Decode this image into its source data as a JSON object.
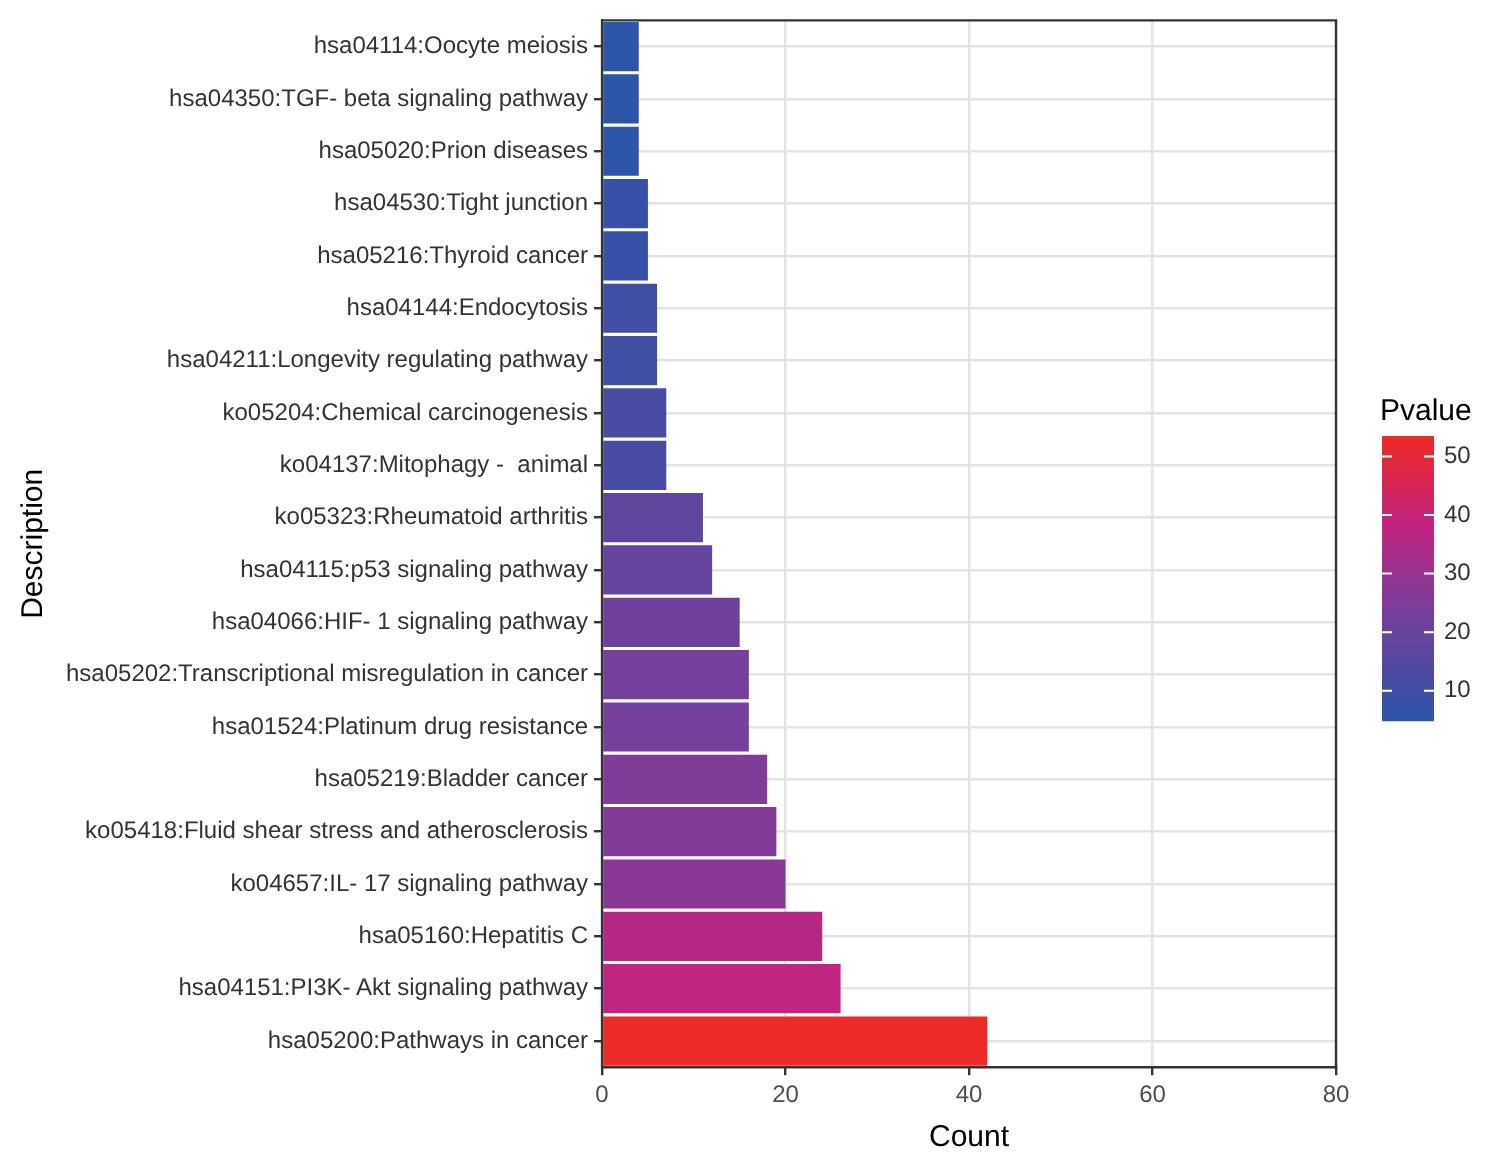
{
  "chart_data": {
    "type": "bar",
    "orientation": "horizontal",
    "xlabel": "Count",
    "ylabel": "Description",
    "clabel": "Pvalue",
    "categories": [
      "hsa04114:Oocyte meiosis",
      "hsa04350:TGF- beta signaling pathway",
      "hsa05020:Prion diseases",
      "hsa04530:Tight junction",
      "hsa05216:Thyroid cancer",
      "hsa04144:Endocytosis",
      "hsa04211:Longevity regulating pathway",
      "ko05204:Chemical carcinogenesis",
      "ko04137:Mitophagy -  animal",
      "ko05323:Rheumatoid arthritis",
      "hsa04115:p53 signaling pathway",
      "hsa04066:HIF- 1 signaling pathway",
      "hsa05202:Transcriptional misregulation in cancer",
      "hsa01524:Platinum drug resistance",
      "hsa05219:Bladder cancer",
      "ko05418:Fluid shear stress and atherosclerosis",
      "ko04657:IL- 17 signaling pathway",
      "hsa05160:Hepatitis C",
      "hsa04151:PI3K- Akt signaling pathway",
      "hsa05200:Pathways in cancer"
    ],
    "values": [
      4,
      4,
      4,
      5,
      5,
      6,
      6,
      7,
      7,
      11,
      12,
      15,
      16,
      16,
      18,
      19,
      20,
      24,
      26,
      42
    ],
    "cvalues": [
      5,
      5,
      5,
      8,
      8,
      10,
      10,
      12,
      12,
      18,
      19,
      22,
      23,
      23,
      25,
      26,
      27,
      36,
      38,
      53
    ],
    "clim": [
      5,
      53.5
    ],
    "cticks": [
      10,
      20,
      30,
      40,
      50
    ],
    "xlim": [
      0,
      80
    ],
    "xticks": [
      0,
      20,
      40,
      60,
      80
    ],
    "grid": true
  }
}
